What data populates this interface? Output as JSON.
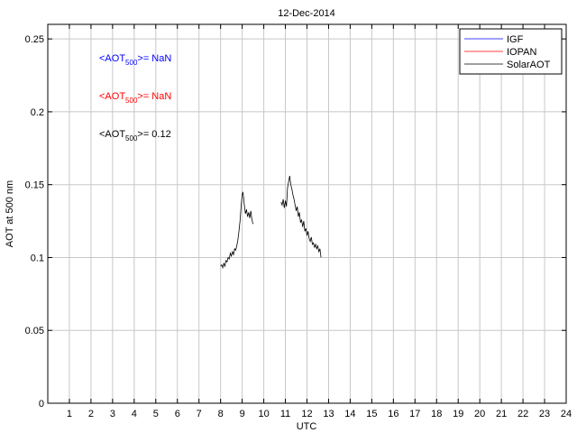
{
  "chart_data": {
    "type": "line",
    "title": "12-Dec-2014",
    "xlabel": "UTC",
    "ylabel": "AOT at 500 nm",
    "xlim": [
      0,
      24
    ],
    "ylim": [
      0,
      0.26
    ],
    "xticks": [
      1,
      2,
      3,
      4,
      5,
      6,
      7,
      8,
      9,
      10,
      11,
      12,
      13,
      14,
      15,
      16,
      17,
      18,
      19,
      20,
      21,
      22,
      23,
      24
    ],
    "yticks": [
      0,
      0.05,
      0.1,
      0.15,
      0.2,
      0.25
    ],
    "ytick_labels": [
      "0",
      "0.05",
      "0.1",
      "0.15",
      "0.2",
      "0.25"
    ],
    "grid": true,
    "legend_position": "top-right",
    "series": [
      {
        "name": "IGF",
        "color": "#0000ff",
        "x": [],
        "y": []
      },
      {
        "name": "IOPAN",
        "color": "#ff0000",
        "x": [],
        "y": []
      },
      {
        "name": "SolarAOT",
        "color": "#000000",
        "x": [
          8.0,
          8.05,
          8.1,
          8.15,
          8.2,
          8.25,
          8.3,
          8.35,
          8.4,
          8.45,
          8.5,
          8.55,
          8.6,
          8.65,
          8.7,
          8.75,
          8.8,
          8.85,
          8.9,
          8.95,
          9.0,
          9.03,
          9.06,
          9.1,
          9.15,
          9.2,
          9.25,
          9.3,
          9.35,
          9.4,
          9.45,
          9.5,
          null,
          10.8,
          10.85,
          10.9,
          10.95,
          11.0,
          11.05,
          11.1,
          11.15,
          11.2,
          11.25,
          11.3,
          11.35,
          11.4,
          11.45,
          11.5,
          11.55,
          11.6,
          11.65,
          11.7,
          11.75,
          11.8,
          11.85,
          11.9,
          11.95,
          12.0,
          12.05,
          12.1,
          12.15,
          12.2,
          12.25,
          12.3,
          12.35,
          12.4,
          12.45,
          12.5,
          12.55,
          12.6,
          12.65
        ],
        "y": [
          0.094,
          0.095,
          0.093,
          0.096,
          0.094,
          0.098,
          0.097,
          0.1,
          0.099,
          0.103,
          0.101,
          0.104,
          0.102,
          0.106,
          0.105,
          0.108,
          0.112,
          0.118,
          0.125,
          0.135,
          0.143,
          0.145,
          0.142,
          0.136,
          0.13,
          0.133,
          0.128,
          0.131,
          0.127,
          0.132,
          0.126,
          0.123,
          null,
          0.138,
          0.136,
          0.14,
          0.134,
          0.139,
          0.135,
          0.148,
          0.152,
          0.156,
          0.15,
          0.147,
          0.143,
          0.14,
          0.136,
          0.132,
          0.135,
          0.128,
          0.131,
          0.124,
          0.126,
          0.121,
          0.125,
          0.118,
          0.12,
          0.115,
          0.118,
          0.113,
          0.111,
          0.114,
          0.109,
          0.11,
          0.107,
          0.109,
          0.106,
          0.108,
          0.104,
          0.106,
          0.1
        ]
      }
    ],
    "annotations": [
      {
        "prefix": "<AOT",
        "sub": "500",
        "suffix": ">=  NaN",
        "color": "#0000ff"
      },
      {
        "prefix": "<AOT",
        "sub": "500",
        "suffix": ">=  NaN",
        "color": "#ff0000"
      },
      {
        "prefix": "<AOT",
        "sub": "500",
        "suffix": ">= 0.12",
        "color": "#000000"
      }
    ]
  }
}
